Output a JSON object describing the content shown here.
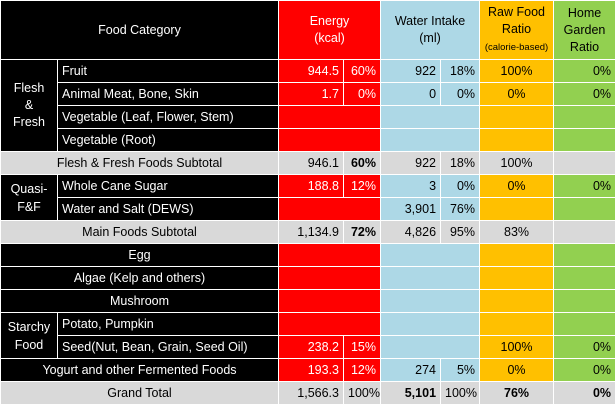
{
  "header": {
    "food_category": "Food Category",
    "energy_line1": "Energy",
    "energy_line2": "(kcal)",
    "water_line1": "Water Intake",
    "water_line2": "(ml)",
    "raw_line1": "Raw Food",
    "raw_line2": "Ratio",
    "raw_line3": "(calorie-based)",
    "home_line1": "Home",
    "home_line2": "Garden",
    "home_line3": "Ratio"
  },
  "groups": {
    "flesh_fresh_line1": "Flesh",
    "flesh_fresh_line2": "&",
    "flesh_fresh_line3": "Fresh",
    "quasi_line1": "Quasi-",
    "quasi_line2": "F&F",
    "starchy_line1": "Starchy",
    "starchy_line2": "Food"
  },
  "rows": {
    "fruit": {
      "label": "Fruit",
      "energy": "944.5",
      "energy_pct": "60%",
      "water": "922",
      "water_pct": "18%",
      "raw": "100%",
      "home": "0%"
    },
    "meat": {
      "label": "Animal Meat, Bone, Skin",
      "energy": "1.7",
      "energy_pct": "0%",
      "water": "0",
      "water_pct": "0%",
      "raw": "0%",
      "home": "0%"
    },
    "veg_leaf": {
      "label": "Vegetable (Leaf, Flower, Stem)"
    },
    "veg_root": {
      "label": "Vegetable (Root)"
    },
    "ff_subtotal": {
      "label": "Flesh & Fresh Foods Subtotal",
      "energy": "946.1",
      "energy_pct": "60%",
      "water": "922",
      "water_pct": "18%",
      "raw": "100%"
    },
    "sugar": {
      "label": "Whole Cane Sugar",
      "energy": "188.8",
      "energy_pct": "12%",
      "water": "3",
      "water_pct": "0%",
      "raw": "0%",
      "home": "0%"
    },
    "water_salt": {
      "label": "Water and Salt (DEWS)",
      "water": "3,901",
      "water_pct": "76%"
    },
    "main_subtotal": {
      "label": "Main Foods Subtotal",
      "energy": "1,134.9",
      "energy_pct": "72%",
      "water": "4,826",
      "water_pct": "95%",
      "raw": "83%"
    },
    "egg": {
      "label": "Egg"
    },
    "algae": {
      "label": "Algae (Kelp and others)"
    },
    "mushroom": {
      "label": "Mushroom"
    },
    "potato": {
      "label": "Potato, Pumpkin"
    },
    "seed": {
      "label": "Seed(Nut, Bean, Grain, Seed Oil)",
      "energy": "238.2",
      "energy_pct": "15%",
      "raw": "100%",
      "home": "0%"
    },
    "yogurt": {
      "label": "Yogurt and other Fermented Foods",
      "energy": "193.3",
      "energy_pct": "12%",
      "water": "274",
      "water_pct": "5%",
      "raw": "0%",
      "home": "0%"
    },
    "grand_total": {
      "label": "Grand Total",
      "energy": "1,566.3",
      "energy_pct": "100%",
      "water": "5,101",
      "water_pct": "100%",
      "raw": "76%",
      "home": "0%"
    }
  },
  "colors": {
    "label_bg": "#000000",
    "energy_bg": "#ff0000",
    "water_bg": "#add8e6",
    "raw_bg": "#ffc000",
    "home_bg": "#92d050",
    "subtotal_bg": "#d9d9d9"
  }
}
